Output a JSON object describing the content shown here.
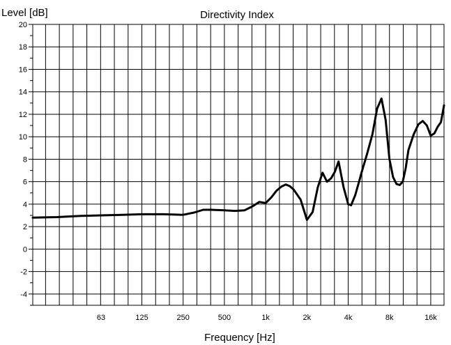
{
  "chart_data": {
    "type": "line",
    "title": "Directivity Index",
    "ylabel": "Level [dB]",
    "xlabel": "Frequency [Hz]",
    "x_scale": "log",
    "xlim": [
      20,
      20000
    ],
    "ylim": [
      -5,
      20
    ],
    "grid": true,
    "y_ticks": [
      "20",
      "18",
      "16",
      "14",
      "12",
      "10",
      "8",
      "6",
      "4",
      "2",
      "0",
      "-2",
      "-4"
    ],
    "x_ticks": [
      {
        "label": "63",
        "value": 63
      },
      {
        "label": "125",
        "value": 125
      },
      {
        "label": "250",
        "value": 250
      },
      {
        "label": "500",
        "value": 500
      },
      {
        "label": "1k",
        "value": 1000
      },
      {
        "label": "2k",
        "value": 2000
      },
      {
        "label": "4k",
        "value": 4000
      },
      {
        "label": "8k",
        "value": 8000
      },
      {
        "label": "16k",
        "value": 16000
      }
    ],
    "series": [
      {
        "color": "#000000",
        "x": [
          20,
          30,
          45,
          63,
          90,
          125,
          180,
          250,
          300,
          350,
          400,
          500,
          600,
          700,
          800,
          900,
          1000,
          1100,
          1200,
          1300,
          1400,
          1500,
          1600,
          1800,
          2000,
          2200,
          2400,
          2600,
          2800,
          3000,
          3200,
          3400,
          3700,
          4000,
          4200,
          4500,
          4800,
          5000,
          5500,
          6000,
          6500,
          7000,
          7500,
          8000,
          8500,
          9000,
          9500,
          10000,
          10500,
          11000,
          12000,
          13000,
          14000,
          15000,
          16000,
          17000,
          18000,
          19000,
          20000
        ],
        "y": [
          2.8,
          2.85,
          2.95,
          3.0,
          3.05,
          3.1,
          3.1,
          3.05,
          3.25,
          3.5,
          3.5,
          3.45,
          3.4,
          3.45,
          3.8,
          4.2,
          4.1,
          4.6,
          5.2,
          5.55,
          5.75,
          5.6,
          5.3,
          4.4,
          2.6,
          3.3,
          5.5,
          6.8,
          6.0,
          6.3,
          6.9,
          7.8,
          5.5,
          4.0,
          3.9,
          4.8,
          6.0,
          6.8,
          8.5,
          10.2,
          12.5,
          13.4,
          11.5,
          8.0,
          6.4,
          5.8,
          5.7,
          6.0,
          7.2,
          8.8,
          10.2,
          11.1,
          11.4,
          11.0,
          10.1,
          10.3,
          10.9,
          11.3,
          12.8
        ]
      }
    ]
  }
}
